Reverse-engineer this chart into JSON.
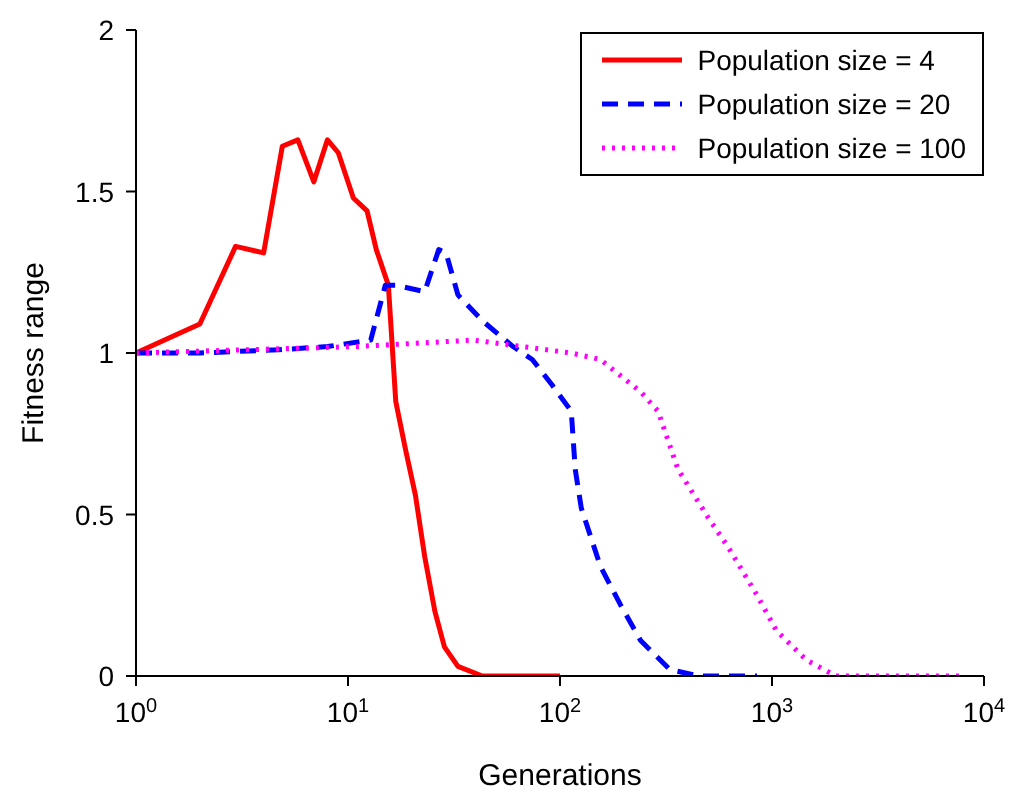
{
  "chart_data": {
    "type": "line",
    "xlabel": "Generations",
    "ylabel": "Fitness range",
    "log": "x",
    "xlim": [
      1,
      10000
    ],
    "xticks": [
      {
        "value": 1,
        "label": "10$^{0}$"
      },
      {
        "value": 10,
        "label": "10$^{1}$"
      },
      {
        "value": 100,
        "label": "10$^{2}$"
      },
      {
        "value": 1000,
        "label": "10$^{3}$"
      },
      {
        "value": 10000,
        "label": "10$^{4}$"
      }
    ],
    "ylim": [
      0,
      2
    ],
    "yticks": [
      0,
      0.5,
      1,
      1.5,
      2
    ],
    "grid": false,
    "legend": "top right",
    "marker": "none",
    "series": [
      {
        "name": "Population size = 4",
        "color": "#ff0000",
        "line_style": "solid",
        "x": [
          1,
          2,
          2.95,
          4,
          4.9,
          5.8,
          6.9,
          8,
          9,
          10.6,
          12.3,
          13.6,
          15.5,
          16.8,
          18.7,
          20.8,
          23,
          25.7,
          28.5,
          33,
          43,
          100
        ],
        "values": [
          1,
          1.09,
          1.33,
          1.31,
          1.64,
          1.66,
          1.53,
          1.66,
          1.62,
          1.48,
          1.44,
          1.32,
          1.21,
          0.85,
          0.7,
          0.56,
          0.37,
          0.2,
          0.09,
          0.03,
          0,
          0
        ]
      },
      {
        "name": "Population size = 20",
        "color": "#0000ff",
        "line_style": "dashed",
        "x": [
          1,
          2,
          4.7,
          8,
          12.8,
          15,
          16.8,
          23,
          26.8,
          29,
          33,
          43,
          60,
          74,
          92,
          113,
          118,
          126,
          155,
          193,
          240,
          330,
          450,
          850
        ],
        "values": [
          1,
          1,
          1.01,
          1.02,
          1.04,
          1.21,
          1.21,
          1.19,
          1.32,
          1.31,
          1.18,
          1.1,
          1.02,
          0.98,
          0.9,
          0.82,
          0.64,
          0.52,
          0.34,
          0.22,
          0.11,
          0.02,
          0,
          0
        ]
      },
      {
        "name": "Population size = 100",
        "color": "#ff00ff",
        "line_style": "dotted",
        "x": [
          1,
          11,
          39,
          113,
          155,
          240,
          290,
          360,
          500,
          620,
          850,
          1050,
          1450,
          2000,
          8000
        ],
        "values": [
          1,
          1.02,
          1.04,
          1,
          0.98,
          0.88,
          0.82,
          0.64,
          0.49,
          0.4,
          0.25,
          0.14,
          0.05,
          0,
          0
        ]
      }
    ]
  }
}
